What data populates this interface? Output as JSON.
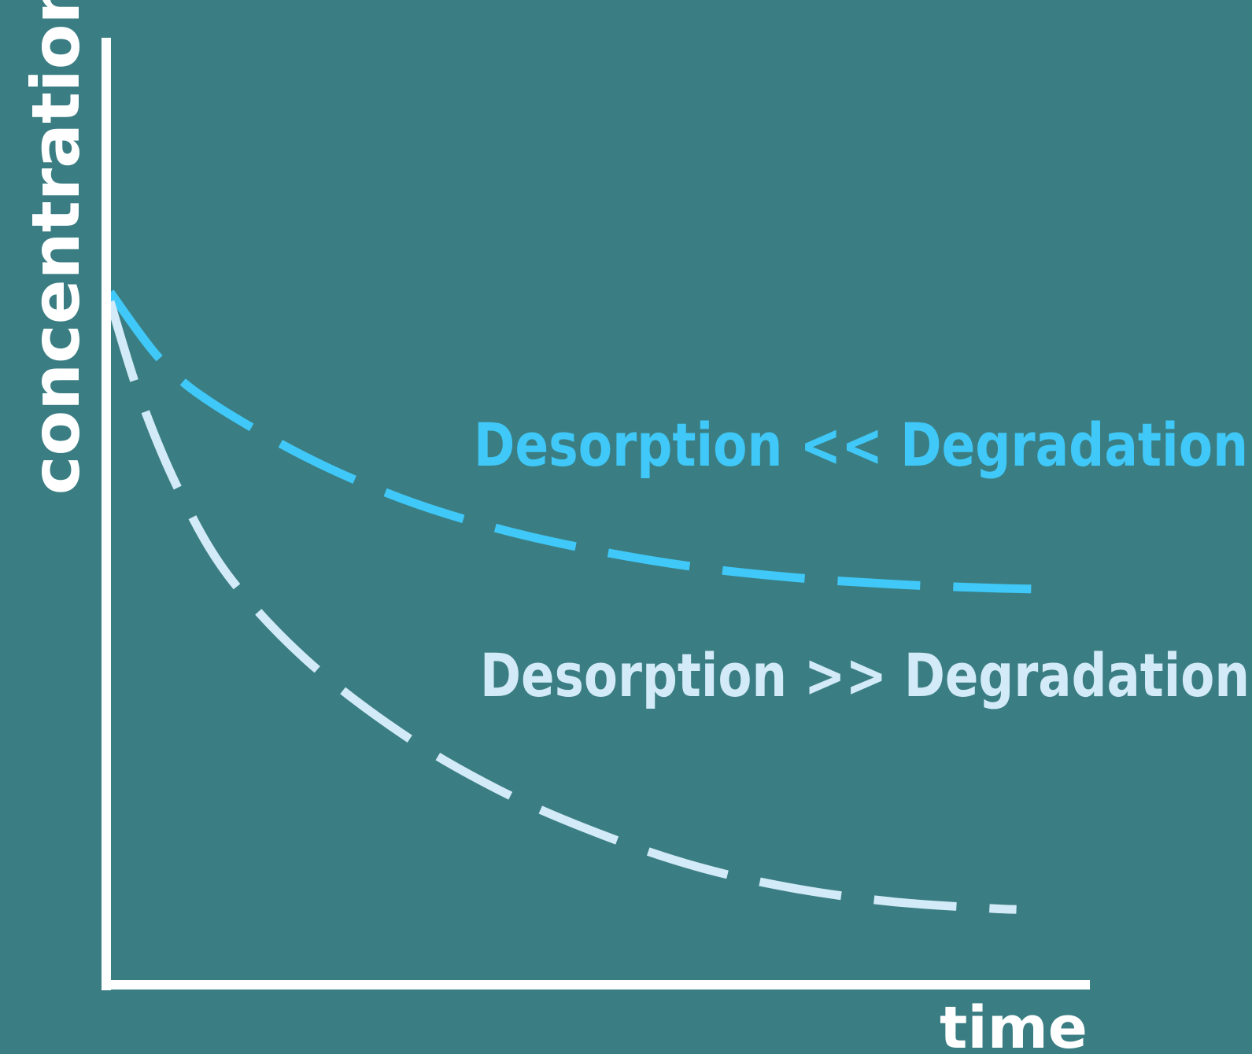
{
  "background_color": "#3a7e83",
  "axis_color": "#ffffff",
  "chart_data": {
    "type": "line",
    "title": "",
    "xlabel": "time",
    "ylabel": "concentration",
    "x_ticks": "none",
    "y_ticks": "none",
    "grid": false,
    "line_style": "dashed",
    "series": [
      {
        "name": "Desorption << Degradation",
        "color": "#3fc8f8",
        "x": [
          0,
          0.05,
          0.1,
          0.2,
          0.3,
          0.4,
          0.5,
          0.6,
          0.7,
          0.8,
          0.9,
          0.94
        ],
        "y": [
          0.73,
          0.66,
          0.615,
          0.555,
          0.51,
          0.478,
          0.455,
          0.438,
          0.427,
          0.42,
          0.416,
          0.415
        ]
      },
      {
        "name": "Desorption >> Degradation",
        "color": "#d3eaf8",
        "x": [
          0,
          0.03,
          0.07,
          0.12,
          0.2,
          0.3,
          0.4,
          0.5,
          0.6,
          0.7,
          0.8,
          0.9,
          0.925
        ],
        "y": [
          0.72,
          0.62,
          0.52,
          0.43,
          0.34,
          0.26,
          0.2,
          0.155,
          0.12,
          0.097,
          0.083,
          0.076,
          0.075
        ]
      }
    ]
  }
}
